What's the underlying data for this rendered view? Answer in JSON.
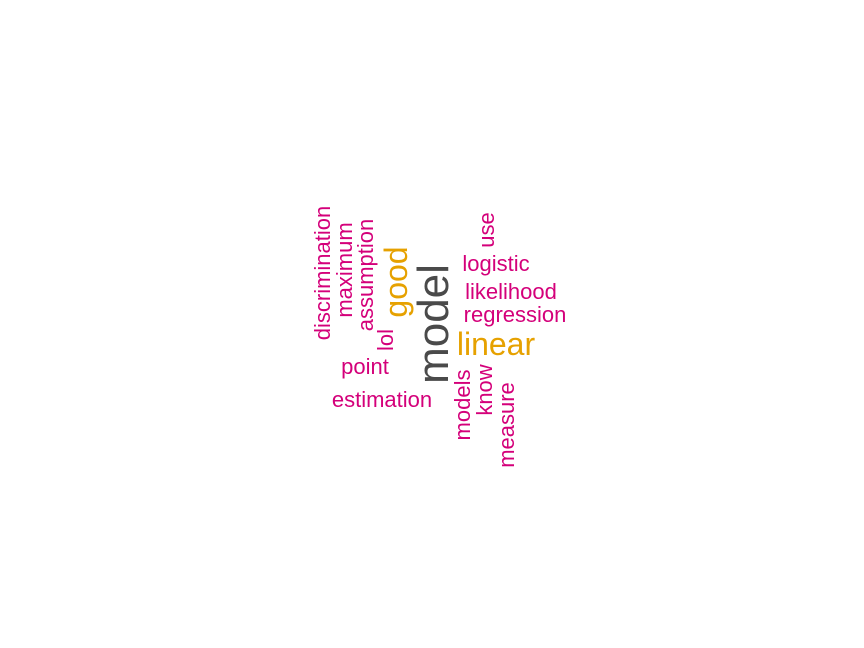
{
  "wordcloud": {
    "colors": {
      "primary": "#4a4a4a",
      "secondary": "#e6a100",
      "tertiary": "#d4007a"
    },
    "words": {
      "model": {
        "text": "model",
        "rank": 1
      },
      "linear": {
        "text": "linear",
        "rank": 2
      },
      "good": {
        "text": "good",
        "rank": 2
      },
      "logistic": {
        "text": "logistic",
        "rank": 3
      },
      "likelihood": {
        "text": "likelihood",
        "rank": 3
      },
      "regression": {
        "text": "regression",
        "rank": 3
      },
      "use": {
        "text": "use",
        "rank": 3
      },
      "discrimination": {
        "text": "discrimination",
        "rank": 3
      },
      "maximum": {
        "text": "maximum",
        "rank": 3
      },
      "assumption": {
        "text": "assumption",
        "rank": 3
      },
      "lol": {
        "text": "lol",
        "rank": 3
      },
      "point": {
        "text": "point",
        "rank": 3
      },
      "estimation": {
        "text": "estimation",
        "rank": 3
      },
      "models": {
        "text": "models",
        "rank": 3
      },
      "know": {
        "text": "know",
        "rank": 3
      },
      "measure": {
        "text": "measure",
        "rank": 3
      }
    }
  }
}
